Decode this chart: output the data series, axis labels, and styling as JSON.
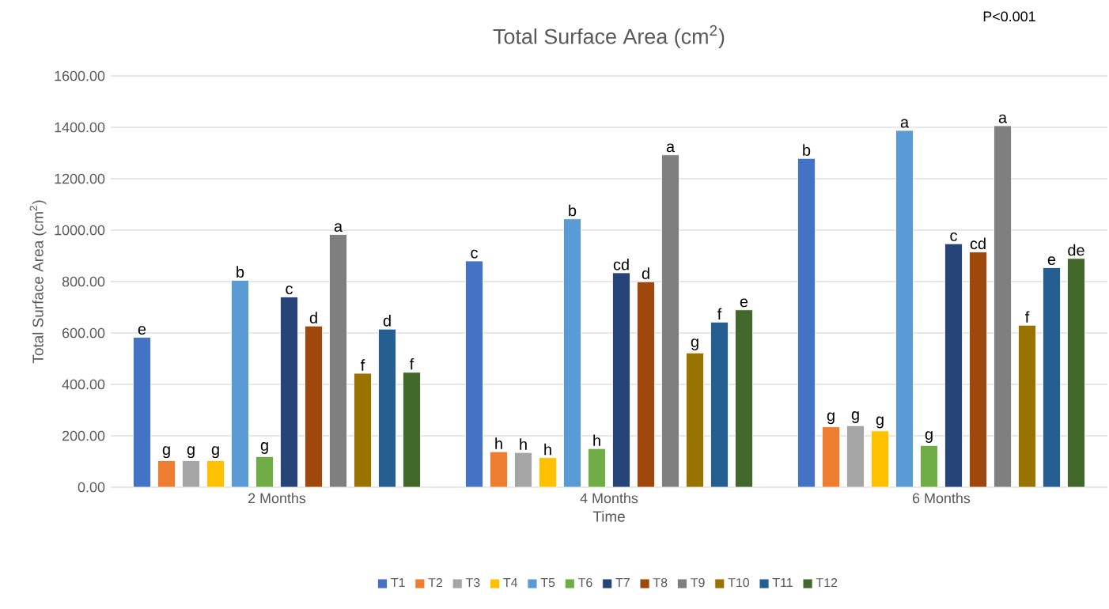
{
  "chart_data": {
    "type": "bar",
    "title": "Total Surface Area (cm$^{2}$)",
    "xlabel": "Time",
    "ylabel": "Total Surface Area (cm$^{2}$)",
    "categories": [
      "2 Months",
      "4 Months",
      "6 Months"
    ],
    "series": [
      {
        "name": "T1",
        "color": "#4472c4",
        "values": [
          583,
          880,
          1279
        ],
        "value_labels": [
          "e",
          "c",
          "b"
        ]
      },
      {
        "name": "T2",
        "color": "#ed7d31",
        "values": [
          103,
          138,
          235
        ],
        "value_labels": [
          "g",
          "h",
          "g"
        ]
      },
      {
        "name": "T3",
        "color": "#a5a5a5",
        "values": [
          103,
          135,
          239
        ],
        "value_labels": [
          "g",
          "h",
          "g"
        ]
      },
      {
        "name": "T4",
        "color": "#ffc000",
        "values": [
          103,
          115,
          219
        ],
        "value_labels": [
          "g",
          "h",
          "g"
        ]
      },
      {
        "name": "T5",
        "color": "#5b9bd5",
        "values": [
          805,
          1044,
          1388
        ],
        "value_labels": [
          "b",
          "b",
          "a"
        ]
      },
      {
        "name": "T6",
        "color": "#70ad47",
        "values": [
          119,
          150,
          162
        ],
        "value_labels": [
          "g",
          "h",
          "g"
        ]
      },
      {
        "name": "T7",
        "color": "#264478",
        "values": [
          740,
          834,
          947
        ],
        "value_labels": [
          "c",
          "cd",
          "c"
        ]
      },
      {
        "name": "T8",
        "color": "#9e480e",
        "values": [
          627,
          799,
          915
        ],
        "value_labels": [
          "d",
          "d",
          "cd"
        ]
      },
      {
        "name": "T9",
        "color": "#7f7f7f",
        "values": [
          983,
          1293,
          1406
        ],
        "value_labels": [
          "a",
          "a",
          "a"
        ]
      },
      {
        "name": "T10",
        "color": "#997300",
        "values": [
          443,
          522,
          630
        ],
        "value_labels": [
          "f",
          "g",
          "f"
        ]
      },
      {
        "name": "T11",
        "color": "#255e91",
        "values": [
          615,
          642,
          854
        ],
        "value_labels": [
          "d",
          "f",
          "e"
        ]
      },
      {
        "name": "T12",
        "color": "#43682b",
        "values": [
          447,
          690,
          890
        ],
        "value_labels": [
          "f",
          "e",
          "de"
        ]
      }
    ],
    "ylim": [
      0,
      1600
    ],
    "yticks": [
      {
        "value": 0,
        "label": "0.00"
      },
      {
        "value": 200,
        "label": "200.00"
      },
      {
        "value": 400,
        "label": "400.00"
      },
      {
        "value": 600,
        "label": "600.00"
      },
      {
        "value": 800,
        "label": "800.00"
      },
      {
        "value": 1000,
        "label": "1000.00"
      },
      {
        "value": 1200,
        "label": "1200.00"
      },
      {
        "value": 1400,
        "label": "1400.00"
      },
      {
        "value": 1600,
        "label": "1600.00"
      }
    ],
    "grid": "y",
    "legend": "bottom",
    "annotations": [
      "P<0.001"
    ]
  }
}
